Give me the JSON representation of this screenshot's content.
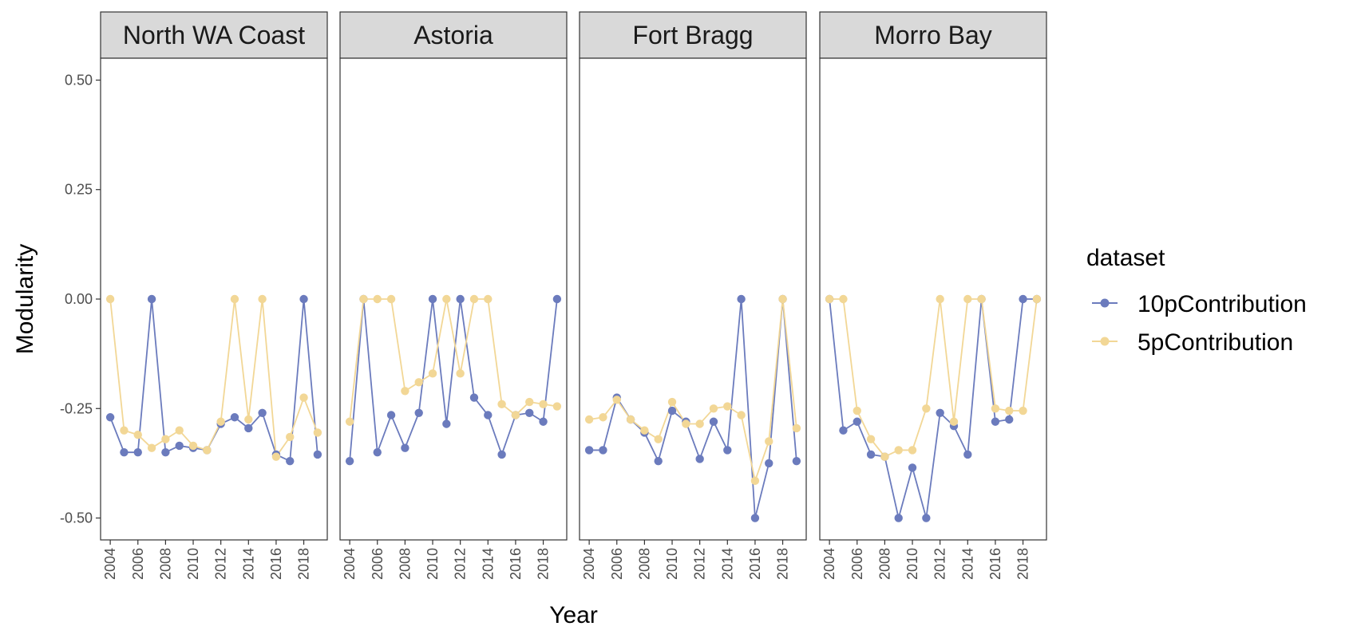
{
  "chart_data": {
    "type": "line",
    "xlabel": "Year",
    "ylabel": "Modularity",
    "ylim": [
      -0.55,
      0.55
    ],
    "yticks": [
      "0.50",
      "0.25",
      "0.00",
      "-0.25",
      "-0.50"
    ],
    "ytick_values": [
      0.5,
      0.25,
      0.0,
      -0.25,
      -0.5
    ],
    "xlim": [
      2003.3,
      2019.7
    ],
    "xticks": [
      "2004",
      "2006",
      "2008",
      "2010",
      "2012",
      "2014",
      "2016",
      "2018"
    ],
    "xtick_values": [
      2004,
      2006,
      2008,
      2010,
      2012,
      2014,
      2016,
      2018
    ],
    "grid": false,
    "legend": {
      "title": "dataset",
      "position": "right",
      "items": [
        {
          "label": "10pContribution",
          "color": "#6b7bbd"
        },
        {
          "label": "5pContribution",
          "color": "#f2d796"
        }
      ]
    },
    "years": [
      2004,
      2005,
      2006,
      2007,
      2008,
      2009,
      2010,
      2011,
      2012,
      2013,
      2014,
      2015,
      2016,
      2017,
      2018,
      2019
    ],
    "facets": [
      {
        "title": "North WA Coast",
        "series": [
          {
            "name": "10pContribution",
            "color": "#6b7bbd",
            "values": [
              -0.27,
              -0.35,
              -0.35,
              0.0,
              -0.35,
              -0.335,
              -0.34,
              -0.345,
              -0.285,
              -0.27,
              -0.295,
              -0.26,
              -0.355,
              -0.37,
              0.0,
              -0.355
            ]
          },
          {
            "name": "5pContribution",
            "color": "#f2d796",
            "values": [
              0.0,
              -0.3,
              -0.31,
              -0.34,
              -0.32,
              -0.3,
              -0.335,
              -0.345,
              -0.28,
              0.0,
              -0.275,
              0.0,
              -0.36,
              -0.315,
              -0.225,
              -0.305
            ]
          }
        ]
      },
      {
        "title": "Astoria",
        "series": [
          {
            "name": "10pContribution",
            "color": "#6b7bbd",
            "values": [
              -0.37,
              0.0,
              -0.35,
              -0.265,
              -0.34,
              -0.26,
              0.0,
              -0.285,
              0.0,
              -0.225,
              -0.265,
              -0.355,
              -0.265,
              -0.26,
              -0.28,
              0.0
            ]
          },
          {
            "name": "5pContribution",
            "color": "#f2d796",
            "values": [
              -0.28,
              0.0,
              0.0,
              0.0,
              -0.21,
              -0.19,
              -0.17,
              0.0,
              -0.17,
              0.0,
              0.0,
              -0.24,
              -0.265,
              -0.235,
              -0.24,
              -0.245
            ]
          }
        ]
      },
      {
        "title": "Fort Bragg",
        "series": [
          {
            "name": "10pContribution",
            "color": "#6b7bbd",
            "values": [
              -0.345,
              -0.345,
              -0.225,
              -0.275,
              -0.305,
              -0.37,
              -0.255,
              -0.28,
              -0.365,
              -0.28,
              -0.345,
              0.0,
              -0.5,
              -0.375,
              0.0,
              -0.37
            ]
          },
          {
            "name": "5pContribution",
            "color": "#f2d796",
            "values": [
              -0.275,
              -0.27,
              -0.23,
              -0.275,
              -0.3,
              -0.32,
              -0.235,
              -0.285,
              -0.285,
              -0.25,
              -0.245,
              -0.265,
              -0.415,
              -0.325,
              0.0,
              -0.295
            ]
          }
        ]
      },
      {
        "title": "Morro Bay",
        "series": [
          {
            "name": "10pContribution",
            "color": "#6b7bbd",
            "values": [
              0.0,
              -0.3,
              -0.28,
              -0.355,
              -0.36,
              -0.5,
              -0.385,
              -0.5,
              -0.26,
              -0.29,
              -0.355,
              0.0,
              -0.28,
              -0.275,
              0.0,
              0.0
            ]
          },
          {
            "name": "5pContribution",
            "color": "#f2d796",
            "values": [
              0.0,
              0.0,
              -0.255,
              -0.32,
              -0.36,
              -0.345,
              -0.345,
              -0.25,
              0.0,
              -0.28,
              0.0,
              0.0,
              -0.25,
              -0.255,
              -0.255,
              0.0
            ]
          }
        ]
      }
    ]
  }
}
